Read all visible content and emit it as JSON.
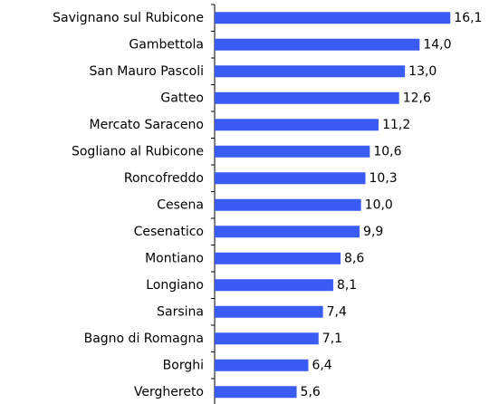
{
  "chart_data": {
    "type": "bar",
    "orientation": "horizontal",
    "categories": [
      "Savignano sul Rubicone",
      "Gambettola",
      "San Mauro Pascoli",
      "Gatteo",
      "Mercato Saraceno",
      "Sogliano al Rubicone",
      "Roncofreddo",
      "Cesena",
      "Cesenatico",
      "Montiano",
      "Longiano",
      "Sarsina",
      "Bagno di Romagna",
      "Borghi",
      "Verghereto"
    ],
    "values": [
      16.1,
      14.0,
      13.0,
      12.6,
      11.2,
      10.6,
      10.3,
      10.0,
      9.9,
      8.6,
      8.1,
      7.4,
      7.1,
      6.4,
      5.6
    ],
    "value_labels": [
      "16,1",
      "14,0",
      "13,0",
      "12,6",
      "11,2",
      "10,6",
      "10,3",
      "10,0",
      "9,9",
      "8,6",
      "8,1",
      "7,4",
      "7,1",
      "6,4",
      "5,6"
    ],
    "color": "#3b5bf5",
    "xlim": [
      0,
      18
    ]
  }
}
